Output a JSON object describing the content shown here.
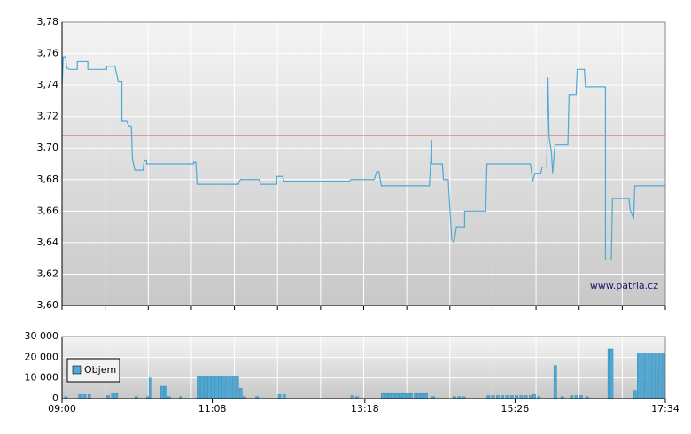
{
  "chart_data": [
    {
      "type": "line",
      "watermark": "www.patria.cz",
      "xlim": [
        0,
        514
      ],
      "ylim": [
        3.6,
        3.78
      ],
      "yticks": [
        {
          "value": 3.6,
          "label": "3,60"
        },
        {
          "value": 3.62,
          "label": "3,62"
        },
        {
          "value": 3.64,
          "label": "3,64"
        },
        {
          "value": 3.66,
          "label": "3,66"
        },
        {
          "value": 3.68,
          "label": "3,68"
        },
        {
          "value": 3.7,
          "label": "3,70"
        },
        {
          "value": 3.72,
          "label": "3,72"
        },
        {
          "value": 3.74,
          "label": "3,74"
        },
        {
          "value": 3.76,
          "label": "3,76"
        },
        {
          "value": 3.78,
          "label": "3,78"
        }
      ],
      "reference_line": 3.708,
      "reference_color": "#d9534f",
      "grid": true,
      "x": [
        0,
        1,
        3,
        4,
        6,
        13,
        13,
        22,
        22,
        38,
        38,
        45,
        48,
        51,
        51,
        55,
        57,
        59,
        60,
        62,
        69,
        70,
        72,
        72,
        112,
        112,
        114,
        115,
        150,
        152,
        155,
        168,
        169,
        183,
        183,
        188,
        189,
        245,
        246,
        266,
        268,
        270,
        272,
        313,
        315,
        315,
        324,
        325,
        329,
        332,
        334,
        336,
        343,
        343,
        361,
        362,
        399,
        401,
        403,
        408,
        409,
        413,
        414,
        415,
        417,
        418,
        420,
        431,
        432,
        438,
        439,
        445,
        446,
        463,
        463,
        468,
        469,
        483,
        484,
        487,
        488,
        514
      ],
      "series": [
        {
          "color": "#4fa9d6",
          "values": [
            3.738,
            3.758,
            3.758,
            3.751,
            3.75,
            3.75,
            3.755,
            3.755,
            3.75,
            3.75,
            3.752,
            3.752,
            3.742,
            3.742,
            3.717,
            3.717,
            3.714,
            3.714,
            3.693,
            3.686,
            3.686,
            3.692,
            3.692,
            3.69,
            3.69,
            3.691,
            3.691,
            3.677,
            3.677,
            3.68,
            3.68,
            3.68,
            3.677,
            3.677,
            3.682,
            3.682,
            3.679,
            3.679,
            3.68,
            3.68,
            3.685,
            3.685,
            3.676,
            3.676,
            3.705,
            3.69,
            3.69,
            3.68,
            3.68,
            3.642,
            3.64,
            3.65,
            3.65,
            3.66,
            3.66,
            3.69,
            3.69,
            3.679,
            3.684,
            3.684,
            3.688,
            3.688,
            3.745,
            3.707,
            3.697,
            3.684,
            3.702,
            3.702,
            3.734,
            3.734,
            3.75,
            3.75,
            3.739,
            3.739,
            3.629,
            3.629,
            3.668,
            3.668,
            3.661,
            3.655,
            3.676,
            3.676
          ]
        }
      ]
    },
    {
      "type": "bar",
      "xlim": [
        0,
        514
      ],
      "ylim": [
        0,
        30000
      ],
      "xticks": [
        {
          "value": 0,
          "label": "09:00"
        },
        {
          "value": 128,
          "label": "11:08"
        },
        {
          "value": 258,
          "label": "13:18"
        },
        {
          "value": 386,
          "label": "15:26"
        },
        {
          "value": 514,
          "label": "17:34"
        }
      ],
      "yticks": [
        {
          "value": 0,
          "label": "0"
        },
        {
          "value": 10000,
          "label": "10 000"
        },
        {
          "value": 20000,
          "label": "20 000"
        },
        {
          "value": 30000,
          "label": "30 000"
        }
      ],
      "grid": true,
      "legend": "upper left",
      "x": [
        2,
        14,
        18,
        22,
        38,
        42,
        45,
        62,
        72,
        74,
        84,
        87,
        90,
        100,
        115,
        118,
        121,
        124,
        127,
        130,
        133,
        136,
        139,
        142,
        145,
        148,
        151,
        154,
        165,
        184,
        188,
        246,
        250,
        272,
        275,
        278,
        281,
        284,
        287,
        290,
        293,
        296,
        300,
        303,
        306,
        309,
        315,
        333,
        337,
        341,
        362,
        366,
        370,
        374,
        378,
        382,
        386,
        390,
        394,
        398,
        401,
        405,
        419,
        425,
        433,
        437,
        441,
        446,
        465,
        467,
        487,
        490,
        493,
        496,
        499,
        502,
        505,
        508,
        511
      ],
      "series": [
        {
          "name": "Objem",
          "color": "#4fa9d6",
          "values": [
            1000,
            2000,
            2000,
            2000,
            1500,
            2500,
            2500,
            1000,
            1000,
            10000,
            6000,
            6000,
            1000,
            1000,
            11000,
            11000,
            11000,
            11000,
            11000,
            11000,
            11000,
            11000,
            11000,
            11000,
            11000,
            11000,
            5000,
            1000,
            1000,
            2000,
            2000,
            1500,
            1000,
            2500,
            2500,
            2500,
            2500,
            2500,
            2500,
            2500,
            2500,
            2500,
            2500,
            2500,
            2500,
            2500,
            1000,
            1000,
            1000,
            1000,
            1500,
            1500,
            1500,
            1500,
            1500,
            1500,
            1500,
            1500,
            1500,
            1500,
            2000,
            1000,
            16000,
            1000,
            1500,
            1500,
            1500,
            1000,
            24000,
            24000,
            4000,
            22000,
            22000,
            22000,
            22000,
            22000,
            22000,
            22000,
            22000
          ]
        }
      ]
    }
  ]
}
